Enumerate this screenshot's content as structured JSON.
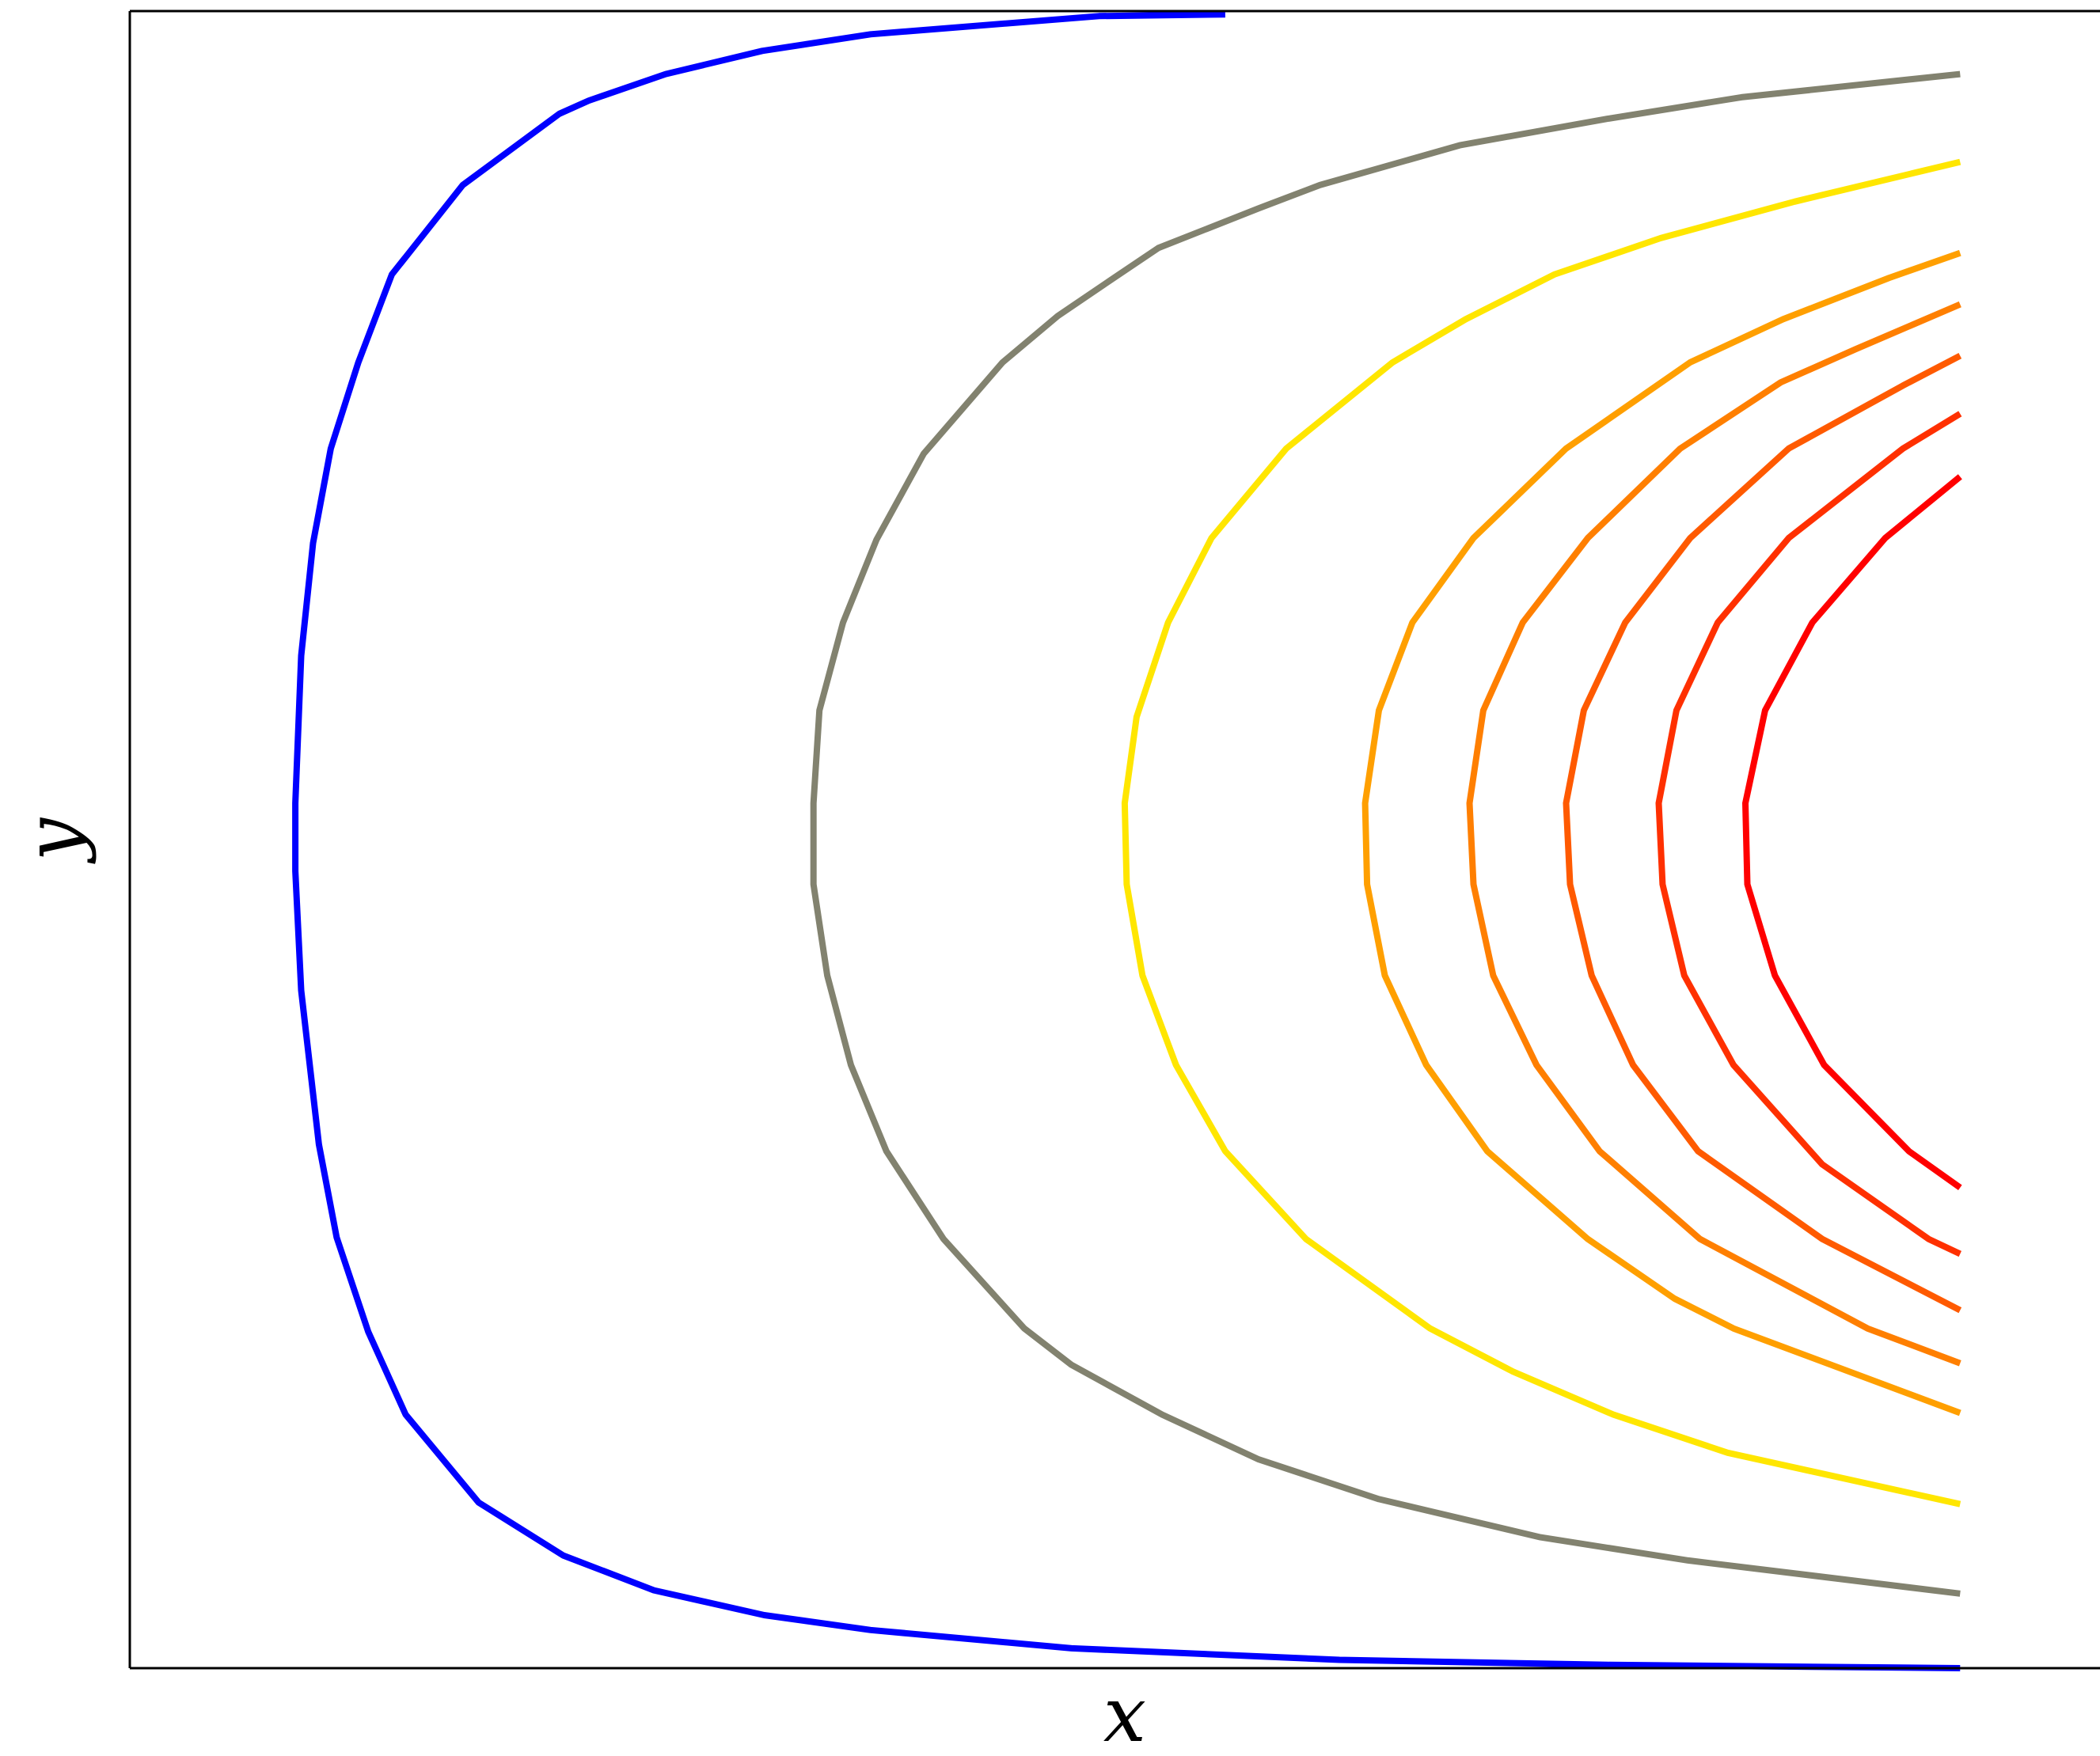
{
  "chart_data": {
    "type": "line",
    "xlabel": "x",
    "ylabel": "y",
    "xlim": [
      0,
      100
    ],
    "ylim": [
      0,
      100
    ],
    "xticks": [],
    "yticks": [],
    "grid": false,
    "series": [
      {
        "color": "#0000ff",
        "x": [
          55.6,
          49.2,
          37.6,
          32.1,
          27.2,
          23.3,
          21.8,
          16.9,
          13.3,
          11.6,
          10.2,
          9.3,
          8.7,
          8.4,
          8.4,
          8.7,
          9.6,
          10.5,
          12.1,
          14.0,
          17.7,
          22.0,
          26.6,
          32.2,
          37.6,
          47.8,
          61.4,
          75.0,
          92.9
        ],
        "values": [
          99.8,
          99.7,
          98.6,
          97.6,
          96.2,
          94.6,
          93.8,
          89.5,
          84.1,
          78.8,
          73.6,
          67.9,
          61.1,
          52.2,
          48.1,
          40.9,
          31.6,
          26.0,
          20.3,
          15.3,
          10.0,
          6.8,
          4.7,
          3.2,
          2.3,
          1.2,
          0.5,
          0.2,
          0.0
        ]
      },
      {
        "color": "#82826f",
        "x": [
          92.9,
          81.8,
          75.0,
          67.5,
          60.4,
          57.3,
          52.2,
          50.2,
          47.1,
          44.3,
          40.3,
          37.9,
          36.2,
          35.0,
          34.7,
          34.7,
          35.4,
          36.6,
          38.4,
          41.3,
          45.4,
          47.8,
          52.4,
          57.3,
          63.4,
          71.6,
          79.1,
          92.9
        ],
        "values": [
          96.2,
          94.8,
          93.5,
          91.9,
          89.5,
          88.1,
          85.7,
          84.1,
          81.6,
          78.8,
          73.3,
          68.1,
          63.1,
          57.8,
          52.2,
          47.3,
          41.8,
          36.4,
          31.2,
          25.9,
          20.5,
          18.3,
          15.3,
          12.6,
          10.2,
          7.9,
          6.5,
          4.5
        ]
      },
      {
        "color": "#ffe600",
        "x": [
          92.9,
          84.5,
          77.7,
          72.3,
          67.8,
          64.1,
          58.7,
          54.9,
          52.7,
          51.1,
          50.5,
          50.6,
          51.4,
          53.1,
          55.6,
          59.7,
          66.0,
          70.2,
          75.3,
          81.1,
          92.9
        ],
        "values": [
          90.9,
          88.5,
          86.3,
          84.1,
          81.4,
          78.8,
          73.6,
          68.2,
          63.1,
          57.4,
          52.2,
          47.3,
          41.8,
          36.4,
          31.2,
          25.9,
          20.5,
          17.9,
          15.3,
          13.0,
          9.9
        ]
      },
      {
        "color": "#ff9f00",
        "x": [
          92.9,
          89.3,
          83.9,
          79.2,
          72.9,
          68.2,
          65.1,
          63.4,
          62.7,
          62.8,
          63.7,
          65.8,
          68.9,
          74.0,
          78.4,
          81.4,
          92.9
        ],
        "values": [
          85.4,
          83.9,
          81.4,
          78.8,
          73.6,
          68.2,
          63.1,
          57.8,
          52.2,
          47.3,
          41.8,
          36.4,
          31.2,
          25.9,
          22.3,
          20.5,
          15.4
        ]
      },
      {
        "color": "#ff7f00",
        "x": [
          92.9,
          87.6,
          83.8,
          78.7,
          74.0,
          70.7,
          68.7,
          68.0,
          68.2,
          69.2,
          71.4,
          74.6,
          79.7,
          88.2,
          92.9
        ],
        "values": [
          82.3,
          79.6,
          77.6,
          73.6,
          68.2,
          63.1,
          57.8,
          52.2,
          47.3,
          41.8,
          36.4,
          31.2,
          25.9,
          20.5,
          18.4
        ]
      },
      {
        "color": "#ff5a00",
        "x": [
          92.9,
          90.0,
          84.2,
          79.2,
          75.9,
          73.8,
          72.9,
          73.1,
          74.2,
          76.3,
          79.6,
          85.9,
          92.9
        ],
        "values": [
          79.2,
          77.4,
          73.6,
          68.2,
          63.1,
          57.8,
          52.2,
          47.3,
          41.8,
          36.4,
          31.2,
          25.9,
          21.6
        ]
      },
      {
        "color": "#ff3000",
        "x": [
          92.9,
          90.0,
          84.2,
          80.6,
          78.5,
          77.6,
          77.8,
          78.9,
          81.4,
          85.9,
          91.3,
          92.9
        ],
        "values": [
          75.7,
          73.6,
          68.2,
          63.1,
          57.8,
          52.2,
          47.3,
          41.8,
          36.4,
          30.4,
          25.9,
          25.0
        ]
      },
      {
        "color": "#ff0000",
        "x": [
          92.9,
          89.1,
          85.4,
          83.0,
          82.0,
          82.1,
          83.5,
          86.0,
          90.3,
          92.9
        ],
        "values": [
          71.9,
          68.2,
          63.1,
          57.8,
          52.2,
          47.3,
          41.8,
          36.4,
          31.2,
          29.0
        ]
      }
    ]
  }
}
